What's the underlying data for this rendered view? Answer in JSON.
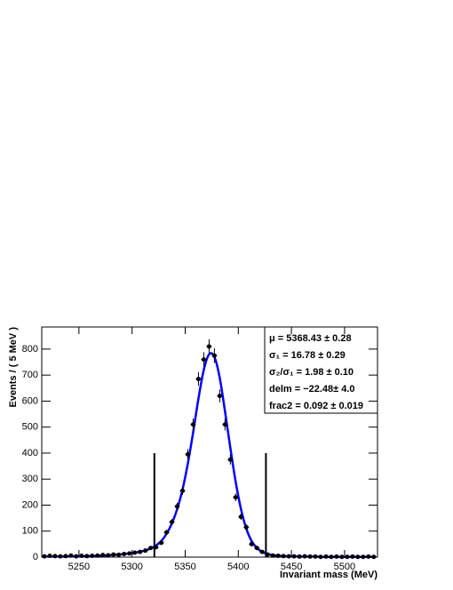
{
  "chart_data": {
    "type": "scatter",
    "xlabel": "Invariant mass (MeV)",
    "ylabel": "Events / ( 5 MeV )",
    "xlim": [
      5215,
      5531
    ],
    "ylim": [
      0,
      885
    ],
    "xticks": [
      5250,
      5300,
      5350,
      5400,
      5450,
      5500
    ],
    "yticks": [
      0,
      100,
      200,
      300,
      400,
      500,
      600,
      700,
      800
    ],
    "x": [
      5217.5,
      5222.5,
      5227.5,
      5232.5,
      5237.5,
      5242.5,
      5247.5,
      5252.5,
      5257.5,
      5262.5,
      5267.5,
      5272.5,
      5277.5,
      5282.5,
      5287.5,
      5292.5,
      5297.5,
      5302.5,
      5307.5,
      5312.5,
      5317.5,
      5322.5,
      5327.5,
      5332.5,
      5337.5,
      5342.5,
      5347.5,
      5352.5,
      5357.5,
      5362.5,
      5367.5,
      5372.5,
      5377.5,
      5382.5,
      5387.5,
      5392.5,
      5397.5,
      5402.5,
      5407.5,
      5412.5,
      5417.5,
      5422.5,
      5427.5,
      5432.5,
      5437.5,
      5442.5,
      5447.5,
      5452.5,
      5457.5,
      5462.5,
      5467.5,
      5472.5,
      5477.5,
      5482.5,
      5487.5,
      5492.5,
      5497.5,
      5502.5,
      5507.5,
      5512.5,
      5517.5,
      5522.5,
      5527.5
    ],
    "series": [
      {
        "color": "#000000",
        "values": [
          3,
          5,
          4,
          3,
          4,
          6,
          3,
          5,
          4,
          5,
          6,
          8,
          7,
          10,
          9,
          12,
          14,
          17,
          20,
          25,
          35,
          38,
          55,
          95,
          135,
          195,
          255,
          395,
          510,
          685,
          760,
          810,
          775,
          620,
          510,
          375,
          230,
          155,
          115,
          50,
          35,
          20,
          10,
          6,
          5,
          4,
          3,
          3,
          2,
          3,
          2,
          2,
          1,
          2,
          1,
          2,
          1,
          1,
          2,
          1,
          1,
          2,
          1
        ],
        "errors": [
          2,
          2,
          2,
          2,
          2,
          2,
          2,
          2,
          2,
          2,
          2,
          3,
          3,
          3,
          3,
          3,
          4,
          4,
          4,
          5,
          6,
          7,
          7,
          10,
          12,
          14,
          16,
          20,
          23,
          26,
          28,
          28,
          28,
          25,
          23,
          19,
          15,
          12,
          11,
          7,
          6,
          4,
          3,
          2,
          2,
          2,
          2,
          2,
          1,
          2,
          1,
          1,
          1,
          1,
          1,
          1,
          1,
          1,
          1,
          1,
          1,
          1,
          1
        ]
      },
      {
        "color": "#0000ff",
        "values": [
          2,
          2,
          2,
          2,
          2,
          3,
          3,
          3,
          4,
          4,
          5,
          6,
          7,
          8,
          10,
          12,
          14,
          17,
          21,
          26,
          33,
          45,
          62,
          90,
          130,
          185,
          260,
          360,
          480,
          610,
          720,
          780,
          770,
          690,
          560,
          420,
          290,
          185,
          110,
          62,
          35,
          20,
          12,
          8,
          5,
          4,
          3,
          3,
          2,
          2,
          2,
          2,
          1,
          1,
          1,
          1,
          1,
          1,
          1,
          1,
          1,
          1,
          1
        ]
      }
    ],
    "lines": [
      {
        "x": 5321,
        "y": 400
      },
      {
        "x": 5426,
        "y": 400
      }
    ],
    "legend": [
      "μ =  5368.43 ± 0.28",
      "σ₁ =  16.78 ± 0.29",
      "σ₂/σ₁ =  1.98 ± 0.10",
      "delm = −22.48± 4.0",
      "frac2 =  0.092 ± 0.019"
    ]
  }
}
